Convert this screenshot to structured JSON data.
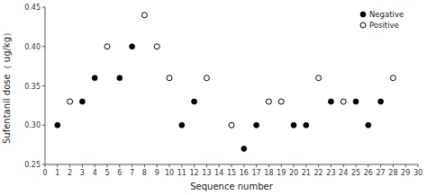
{
  "chart_data": {
    "type": "scatter",
    "xlabel": "Sequence number",
    "ylabel": "Sufentanil dose（ ug/kg）",
    "series": [
      {
        "name": "Negative",
        "color": "#000000",
        "marker": "filled-circle",
        "x": [
          1,
          3,
          4,
          6,
          7,
          11,
          12,
          16,
          17,
          20,
          21,
          23,
          25,
          26,
          27
        ],
        "values": [
          0.3,
          0.33,
          0.36,
          0.36,
          0.4,
          0.3,
          0.33,
          0.27,
          0.3,
          0.3,
          0.3,
          0.33,
          0.33,
          0.3,
          0.33
        ]
      },
      {
        "name": "Positive",
        "color": "#000000",
        "marker": "open-circle",
        "x": [
          2,
          5,
          8,
          9,
          10,
          13,
          15,
          18,
          19,
          22,
          24,
          28
        ],
        "values": [
          0.33,
          0.4,
          0.44,
          0.4,
          0.36,
          0.36,
          0.3,
          0.33,
          0.33,
          0.36,
          0.33,
          0.36
        ]
      }
    ],
    "xlim": [
      0,
      30
    ],
    "ylim": [
      0.25,
      0.45
    ],
    "xticks": [
      0,
      1,
      2,
      3,
      4,
      5,
      6,
      7,
      8,
      9,
      10,
      11,
      12,
      13,
      14,
      15,
      16,
      17,
      18,
      19,
      20,
      21,
      22,
      23,
      24,
      25,
      26,
      27,
      28,
      29,
      30
    ],
    "yticks": [
      0.25,
      {
        "value": 0.3,
        "label": "0.30"
      },
      0.35,
      {
        "value": 0.4,
        "label": "0.40"
      },
      0.45
    ],
    "grid": false,
    "legend": "upper-right"
  }
}
